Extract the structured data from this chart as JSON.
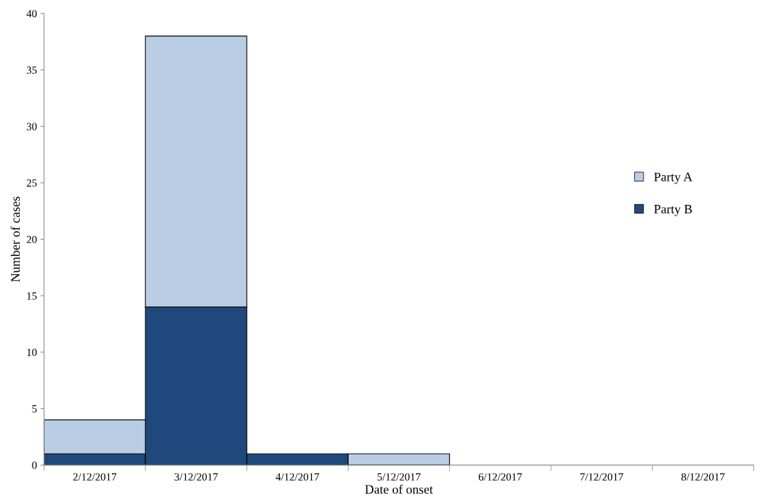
{
  "chart_data": {
    "type": "bar",
    "stacked": true,
    "xlabel": "Date of onset",
    "ylabel": "Number of cases",
    "categories": [
      "2/12/2017",
      "3/12/2017",
      "4/12/2017",
      "5/12/2017",
      "6/12/2017",
      "7/12/2017",
      "8/12/2017"
    ],
    "series": [
      {
        "name": "Party B",
        "color": "#1f497d",
        "values": [
          1,
          14,
          1,
          0,
          0,
          0,
          0
        ]
      },
      {
        "name": "Party A",
        "color": "#b9cde5",
        "values": [
          3,
          24,
          0,
          1,
          0,
          0,
          0
        ]
      }
    ],
    "ylim": [
      0,
      40
    ],
    "yticks": [
      0,
      5,
      10,
      15,
      20,
      25,
      30,
      35,
      40
    ],
    "grid": false,
    "legend": "right"
  }
}
